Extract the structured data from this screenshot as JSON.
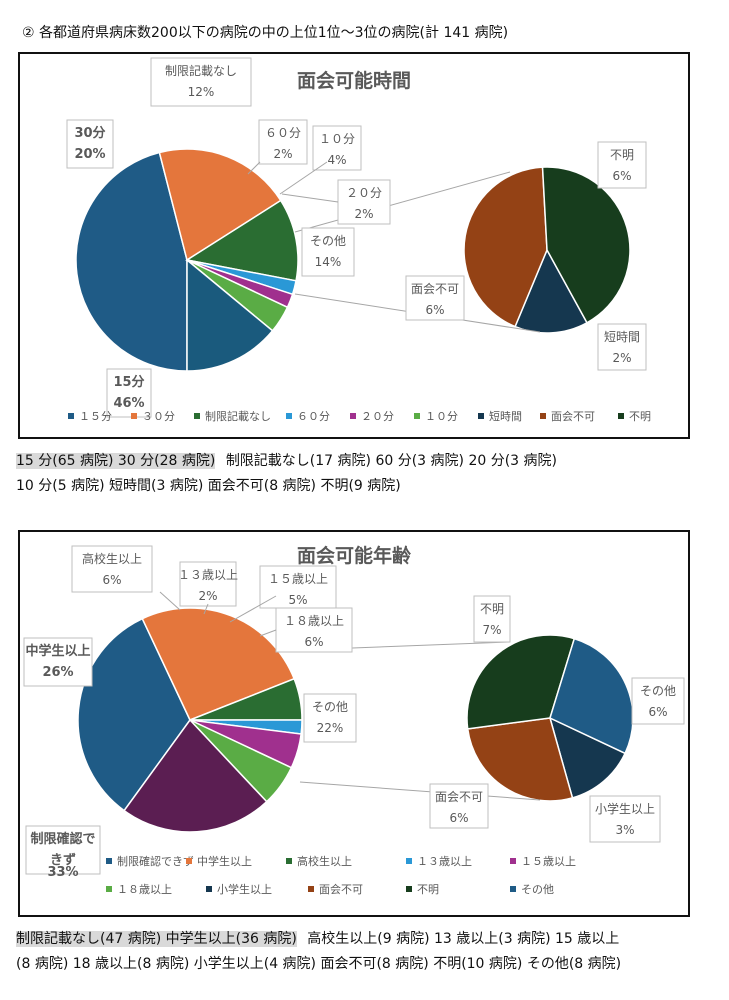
{
  "heading": "② 各都道府県病床数200以下の病院の中の上位1位～3位の病院(計 141 病院)",
  "chart_data": [
    {
      "type": "pie",
      "title": "面会可能時間",
      "categories": [
        "１５分",
        "３０分",
        "制限記載なし",
        "６０分",
        "２０分",
        "１０分"
      ],
      "values": [
        46,
        20,
        12,
        2,
        2,
        4
      ],
      "slice_labels": [
        {
          "name": "15分",
          "pct": "46%"
        },
        {
          "name": "30分",
          "pct": "20%"
        },
        {
          "name": "制限記載なし",
          "pct": "12%"
        },
        {
          "name": "６０分",
          "pct": "2%"
        },
        {
          "name": "２０分",
          "pct": "2%"
        },
        {
          "name": "１０分",
          "pct": "4%"
        },
        {
          "name": "その他",
          "pct": "14%"
        }
      ],
      "sub_pie": {
        "categories": [
          "短時間",
          "面会不可",
          "不明"
        ],
        "values": [
          2,
          6,
          6
        ],
        "slice_labels": [
          {
            "name": "短時間",
            "pct": "2%"
          },
          {
            "name": "面会不可",
            "pct": "6%"
          },
          {
            "name": "不明",
            "pct": "6%"
          }
        ]
      },
      "legend": [
        "１５分",
        "３０分",
        "制限記載なし",
        "６０分",
        "２０分",
        "１０分",
        "短時間",
        "面会不可",
        "不明"
      ],
      "legend_position": "bottom"
    },
    {
      "type": "pie",
      "title": "面会可能年齢",
      "categories": [
        "制限確認できず",
        "中学生以上",
        "高校生以上",
        "１３歳以上",
        "１５歳以上",
        "１８歳以上"
      ],
      "values": [
        33,
        26,
        6,
        2,
        5,
        6
      ],
      "slice_labels": [
        {
          "name": "制限確認できず",
          "pct": "33%"
        },
        {
          "name": "中学生以上",
          "pct": "26%"
        },
        {
          "name": "高校生以上",
          "pct": "6%"
        },
        {
          "name": "１３歳以上",
          "pct": "2%"
        },
        {
          "name": "１５歳以上",
          "pct": "5%"
        },
        {
          "name": "１８歳以上",
          "pct": "6%"
        },
        {
          "name": "その他",
          "pct": "22%"
        }
      ],
      "sub_pie": {
        "categories": [
          "小学生以上",
          "面会不可",
          "不明",
          "その他"
        ],
        "values": [
          3,
          6,
          7,
          6
        ],
        "slice_labels": [
          {
            "name": "小学生以上",
            "pct": "3%"
          },
          {
            "name": "面会不可",
            "pct": "6%"
          },
          {
            "name": "不明",
            "pct": "7%"
          },
          {
            "name": "その他",
            "pct": "6%"
          }
        ]
      },
      "legend": [
        "制限確認できず",
        "中学生以上",
        "高校生以上",
        "１３歳以上",
        "１５歳以上",
        "１８歳以上",
        "小学生以上",
        "面会不可",
        "不明",
        "その他"
      ],
      "legend_position": "bottom"
    }
  ],
  "colors": {
    "c1": [
      "#1f5b86",
      "#e4763c",
      "#2a6d32",
      "#2a98d6",
      "#a0308e",
      "#5aac45",
      "#15374f",
      "#944215",
      "#173d1d"
    ],
    "c2": [
      "#1f5b86",
      "#e4763c",
      "#2a6d32",
      "#2a98d6",
      "#a0308e",
      "#5aac45",
      "#5b1e52",
      "#15374f",
      "#944215",
      "#173d1d",
      "#1f5b86"
    ]
  },
  "summary1": {
    "line1_hl": "15 分(65 病院)  30 分(28 病院)",
    "line1_rest": "制限記載なし(17 病院)  60 分(3 病院)  20 分(3 病院)",
    "line2": "10 分(5 病院)  短時間(3 病院)  面会不可(8 病院)  不明(9 病院)"
  },
  "summary2": {
    "line1_hl": "制限記載なし(47 病院)  中学生以上(36 病院)",
    "line1_rest": "高校生以上(9 病院)  13 歳以上(3 病院)  15 歳以上",
    "line2": "(8 病院)  18 歳以上(8 病院) 小学生以上(4 病院)  面会不可(8 病院)  不明(10 病院)  その他(8 病院)"
  }
}
